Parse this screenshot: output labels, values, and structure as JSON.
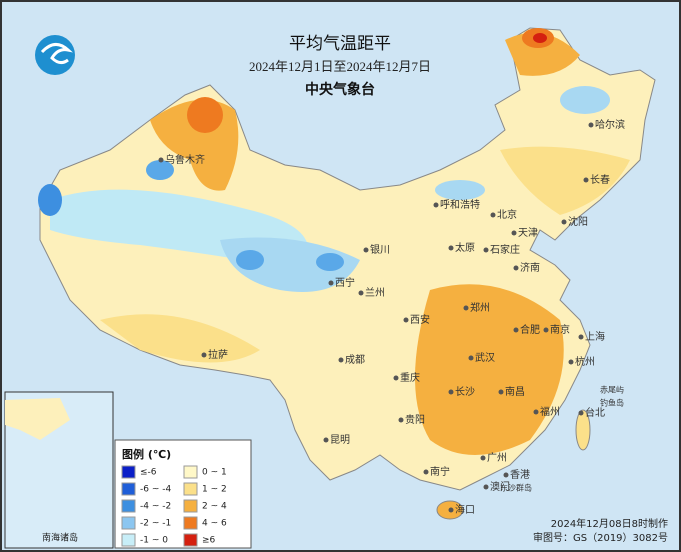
{
  "header": {
    "title": "平均气温距平",
    "date_range": "2024年12月1日至2024年12月7日",
    "agency": "中央气象台"
  },
  "legend": {
    "title": "图例 (℃)",
    "items": [
      {
        "label": "≤-6",
        "color": "#0b1fc8"
      },
      {
        "label": "-6 ~ -4",
        "color": "#1f5ed8"
      },
      {
        "label": "-4 ~ -2",
        "color": "#3d8fe0"
      },
      {
        "label": "-2 ~ -1",
        "color": "#8cc6f0"
      },
      {
        "label": "-1 ~ 0",
        "color": "#c8eef8"
      },
      {
        "label": "0 ~ 1",
        "color": "#fff8c8"
      },
      {
        "label": "1 ~ 2",
        "color": "#fbe08a"
      },
      {
        "label": "2 ~ 4",
        "color": "#f5b040"
      },
      {
        "label": "4 ~ 6",
        "color": "#ee7a20"
      },
      {
        "label": "≥6",
        "color": "#d42010"
      }
    ]
  },
  "cities": [
    {
      "name": "乌鲁木齐"
    },
    {
      "name": "拉萨"
    },
    {
      "name": "西宁"
    },
    {
      "name": "兰州"
    },
    {
      "name": "银川"
    },
    {
      "name": "呼和浩特"
    },
    {
      "name": "北京"
    },
    {
      "name": "天津"
    },
    {
      "name": "石家庄"
    },
    {
      "name": "太原"
    },
    {
      "name": "济南"
    },
    {
      "name": "郑州"
    },
    {
      "name": "西安"
    },
    {
      "name": "成都"
    },
    {
      "name": "重庆"
    },
    {
      "name": "贵阳"
    },
    {
      "name": "昆明"
    },
    {
      "name": "南宁"
    },
    {
      "name": "广州"
    },
    {
      "name": "香港"
    },
    {
      "name": "澳门"
    },
    {
      "name": "海口"
    },
    {
      "name": "长沙"
    },
    {
      "name": "武汉"
    },
    {
      "name": "南昌"
    },
    {
      "name": "福州"
    },
    {
      "name": "台北"
    },
    {
      "name": "杭州"
    },
    {
      "name": "上海"
    },
    {
      "name": "南京"
    },
    {
      "name": "合肥"
    },
    {
      "name": "沈阳"
    },
    {
      "name": "长春"
    },
    {
      "name": "哈尔滨"
    }
  ],
  "islands": [
    {
      "name": "东沙群岛"
    },
    {
      "name": "赤尾屿"
    },
    {
      "name": "钓鱼岛"
    }
  ],
  "inset": {
    "label": "南海诸岛"
  },
  "footer": {
    "made": "2024年12月08日8时制作",
    "approval": "审图号：GS（2019）3082号"
  }
}
